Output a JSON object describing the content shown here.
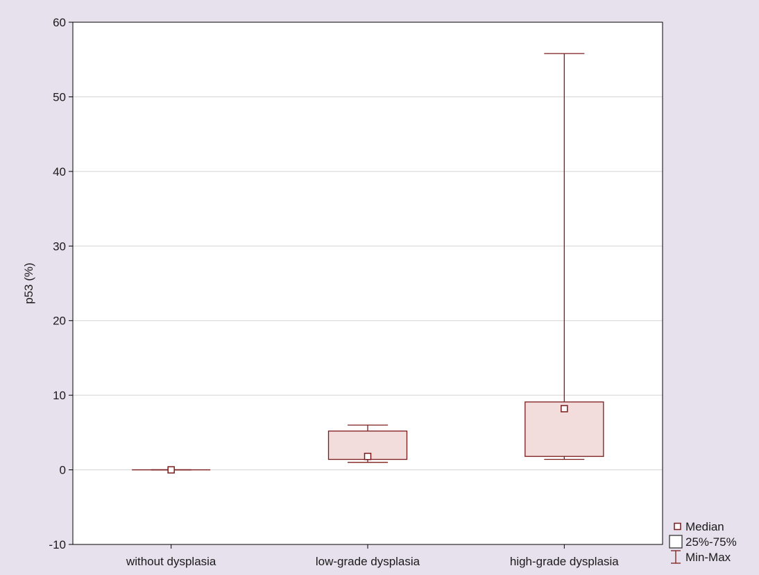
{
  "chart_data": {
    "type": "box",
    "ylabel": "p53 (%)",
    "ylim": [
      -10,
      60
    ],
    "yticks": [
      -10,
      0,
      10,
      20,
      30,
      40,
      50,
      60
    ],
    "grid": "horizontal",
    "categories": [
      "without dysplasia",
      "low-grade dysplasia",
      "high-grade dysplasia"
    ],
    "boxes": [
      {
        "category": "without dysplasia",
        "min": 0,
        "q1": 0,
        "median": 0,
        "q3": 0,
        "max": 0
      },
      {
        "category": "low-grade dysplasia",
        "min": 1.0,
        "q1": 1.4,
        "median": 1.8,
        "q3": 5.2,
        "max": 6.0
      },
      {
        "category": "high-grade dysplasia",
        "min": 1.4,
        "q1": 1.8,
        "median": 8.2,
        "q3": 9.1,
        "max": 55.8
      }
    ],
    "legend": {
      "placement": "bottom-right",
      "items": [
        {
          "key": "median",
          "label": "Median"
        },
        {
          "key": "box",
          "label": "25%-75%"
        },
        {
          "key": "whisker",
          "label": "Min-Max"
        }
      ]
    },
    "colors": {
      "stroke": "#7b1a1a",
      "box_fill": "#f2dcdc",
      "plot_background": "#ffffff",
      "page_background": "#e6e1ed",
      "grid": "#d3d3d3"
    }
  }
}
